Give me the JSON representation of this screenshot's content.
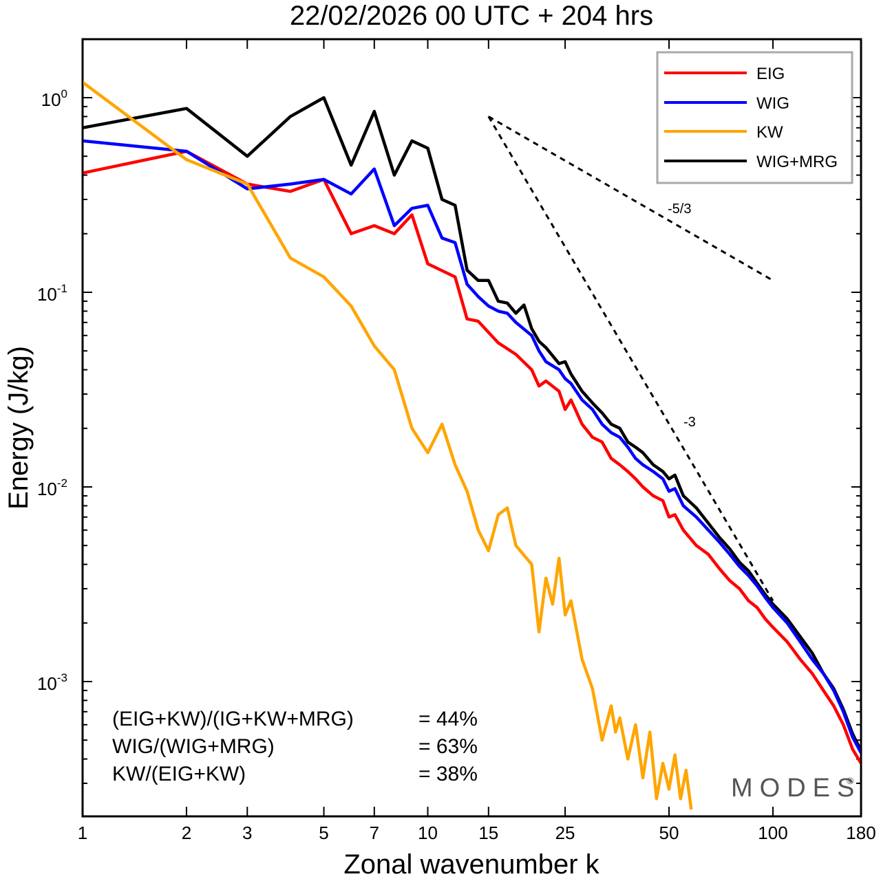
{
  "chart_data": {
    "type": "line",
    "title": "22/02/2026  00 UTC  + 204 hrs",
    "xlabel": "Zonal wavenumber k",
    "ylabel": "Energy (J/kg)",
    "xscale": "log",
    "yscale": "log",
    "xlim": [
      1,
      180
    ],
    "ylim": [
      0.0002,
      2.0
    ],
    "x_ticks": [
      1,
      2,
      3,
      5,
      7,
      10,
      15,
      25,
      50,
      100,
      180
    ],
    "x_tick_labels": [
      "1",
      "2",
      "3",
      "5",
      "7",
      "10",
      "15",
      "25",
      "50",
      "100",
      "180"
    ],
    "y_ticks": [
      {
        "value": 1.0,
        "base": "10",
        "exp": "0"
      },
      {
        "value": 0.1,
        "base": "10",
        "exp": "-1"
      },
      {
        "value": 0.01,
        "base": "10",
        "exp": "-2"
      },
      {
        "value": 0.001,
        "base": "10",
        "exp": "-3"
      }
    ],
    "legend_position": "top-right",
    "series": [
      {
        "name": "EIG",
        "color": "#ff0000",
        "points": [
          [
            1,
            0.41
          ],
          [
            2,
            0.53
          ],
          [
            3,
            0.36
          ],
          [
            4,
            0.33
          ],
          [
            5,
            0.38
          ],
          [
            6,
            0.2
          ],
          [
            7,
            0.22
          ],
          [
            8,
            0.2
          ],
          [
            9,
            0.25
          ],
          [
            10,
            0.14
          ],
          [
            12,
            0.12
          ],
          [
            13,
            0.073
          ],
          [
            14,
            0.071
          ],
          [
            16,
            0.055
          ],
          [
            18,
            0.048
          ],
          [
            20,
            0.04
          ],
          [
            21,
            0.033
          ],
          [
            22,
            0.035
          ],
          [
            24,
            0.031
          ],
          [
            25,
            0.025
          ],
          [
            26,
            0.028
          ],
          [
            28,
            0.021
          ],
          [
            30,
            0.018
          ],
          [
            32,
            0.017
          ],
          [
            34,
            0.014
          ],
          [
            36,
            0.013
          ],
          [
            38,
            0.012
          ],
          [
            40,
            0.011
          ],
          [
            42,
            0.01
          ],
          [
            45,
            0.009
          ],
          [
            48,
            0.0085
          ],
          [
            50,
            0.007
          ],
          [
            52,
            0.0072
          ],
          [
            55,
            0.006
          ],
          [
            60,
            0.005
          ],
          [
            65,
            0.0045
          ],
          [
            70,
            0.0038
          ],
          [
            75,
            0.0033
          ],
          [
            80,
            0.003
          ],
          [
            85,
            0.0026
          ],
          [
            90,
            0.0024
          ],
          [
            95,
            0.0021
          ],
          [
            100,
            0.0019
          ],
          [
            110,
            0.0016
          ],
          [
            120,
            0.0013
          ],
          [
            130,
            0.0011
          ],
          [
            140,
            0.0009
          ],
          [
            150,
            0.00075
          ],
          [
            160,
            0.0006
          ],
          [
            170,
            0.00045
          ],
          [
            180,
            0.00038
          ]
        ]
      },
      {
        "name": "WIG",
        "color": "#0000ff",
        "points": [
          [
            1,
            0.6
          ],
          [
            2,
            0.53
          ],
          [
            3,
            0.34
          ],
          [
            4,
            0.36
          ],
          [
            5,
            0.38
          ],
          [
            6,
            0.32
          ],
          [
            7,
            0.43
          ],
          [
            8,
            0.22
          ],
          [
            9,
            0.27
          ],
          [
            10,
            0.28
          ],
          [
            11,
            0.19
          ],
          [
            12,
            0.18
          ],
          [
            13,
            0.11
          ],
          [
            14,
            0.095
          ],
          [
            15,
            0.085
          ],
          [
            16,
            0.08
          ],
          [
            17,
            0.078
          ],
          [
            18,
            0.07
          ],
          [
            20,
            0.06
          ],
          [
            21,
            0.05
          ],
          [
            22,
            0.044
          ],
          [
            24,
            0.04
          ],
          [
            25,
            0.036
          ],
          [
            26,
            0.034
          ],
          [
            28,
            0.028
          ],
          [
            30,
            0.025
          ],
          [
            32,
            0.021
          ],
          [
            34,
            0.019
          ],
          [
            36,
            0.018
          ],
          [
            38,
            0.016
          ],
          [
            40,
            0.014
          ],
          [
            42,
            0.013
          ],
          [
            45,
            0.012
          ],
          [
            48,
            0.011
          ],
          [
            50,
            0.0095
          ],
          [
            52,
            0.0098
          ],
          [
            55,
            0.008
          ],
          [
            60,
            0.007
          ],
          [
            65,
            0.006
          ],
          [
            70,
            0.0052
          ],
          [
            75,
            0.0045
          ],
          [
            80,
            0.0039
          ],
          [
            85,
            0.0035
          ],
          [
            90,
            0.0031
          ],
          [
            95,
            0.0027
          ],
          [
            100,
            0.0024
          ],
          [
            110,
            0.002
          ],
          [
            120,
            0.0016
          ],
          [
            130,
            0.0013
          ],
          [
            140,
            0.0011
          ],
          [
            150,
            0.0009
          ],
          [
            160,
            0.0007
          ],
          [
            170,
            0.00052
          ],
          [
            180,
            0.00043
          ]
        ]
      },
      {
        "name": "KW",
        "color": "#ffa500",
        "points": [
          [
            1,
            1.2
          ],
          [
            2,
            0.48
          ],
          [
            3,
            0.36
          ],
          [
            4,
            0.15
          ],
          [
            5,
            0.12
          ],
          [
            6,
            0.085
          ],
          [
            7,
            0.053
          ],
          [
            8,
            0.04
          ],
          [
            9,
            0.02
          ],
          [
            10,
            0.015
          ],
          [
            11,
            0.021
          ],
          [
            12,
            0.013
          ],
          [
            13,
            0.0095
          ],
          [
            14,
            0.006
          ],
          [
            15,
            0.0047
          ],
          [
            16,
            0.0072
          ],
          [
            17,
            0.0078
          ],
          [
            18,
            0.005
          ],
          [
            20,
            0.004
          ],
          [
            21,
            0.0018
          ],
          [
            22,
            0.0034
          ],
          [
            23,
            0.0025
          ],
          [
            24,
            0.0043
          ],
          [
            25,
            0.0022
          ],
          [
            26,
            0.0026
          ],
          [
            28,
            0.0013
          ],
          [
            30,
            0.00092
          ],
          [
            32,
            0.0005
          ],
          [
            34,
            0.00075
          ],
          [
            35,
            0.00055
          ],
          [
            36,
            0.00065
          ],
          [
            38,
            0.0004
          ],
          [
            40,
            0.0006
          ],
          [
            42,
            0.00032
          ],
          [
            44,
            0.00055
          ],
          [
            46,
            0.00025
          ],
          [
            48,
            0.00038
          ],
          [
            50,
            0.00028
          ],
          [
            52,
            0.00042
          ],
          [
            54,
            0.00025
          ],
          [
            56,
            0.00035
          ],
          [
            58,
            0.00022
          ]
        ]
      },
      {
        "name": "WIG+MRG",
        "color": "#000000",
        "points": [
          [
            1,
            0.7
          ],
          [
            2,
            0.88
          ],
          [
            3,
            0.5
          ],
          [
            4,
            0.8
          ],
          [
            5,
            1.0
          ],
          [
            6,
            0.45
          ],
          [
            7,
            0.85
          ],
          [
            8,
            0.4
          ],
          [
            9,
            0.6
          ],
          [
            10,
            0.55
          ],
          [
            11,
            0.3
          ],
          [
            12,
            0.28
          ],
          [
            13,
            0.13
          ],
          [
            14,
            0.115
          ],
          [
            15,
            0.115
          ],
          [
            16,
            0.09
          ],
          [
            17,
            0.088
          ],
          [
            18,
            0.078
          ],
          [
            19,
            0.086
          ],
          [
            20,
            0.065
          ],
          [
            21,
            0.056
          ],
          [
            22,
            0.052
          ],
          [
            24,
            0.043
          ],
          [
            25,
            0.044
          ],
          [
            26,
            0.038
          ],
          [
            28,
            0.031
          ],
          [
            30,
            0.027
          ],
          [
            32,
            0.024
          ],
          [
            34,
            0.021
          ],
          [
            36,
            0.02
          ],
          [
            38,
            0.017
          ],
          [
            40,
            0.016
          ],
          [
            42,
            0.015
          ],
          [
            45,
            0.013
          ],
          [
            48,
            0.012
          ],
          [
            50,
            0.011
          ],
          [
            52,
            0.0115
          ],
          [
            55,
            0.009
          ],
          [
            60,
            0.0078
          ],
          [
            65,
            0.0065
          ],
          [
            70,
            0.0055
          ],
          [
            75,
            0.0048
          ],
          [
            80,
            0.0041
          ],
          [
            85,
            0.0037
          ],
          [
            90,
            0.0032
          ],
          [
            95,
            0.0028
          ],
          [
            100,
            0.0025
          ],
          [
            110,
            0.0021
          ],
          [
            120,
            0.0017
          ],
          [
            130,
            0.0014
          ],
          [
            140,
            0.0011
          ],
          [
            150,
            0.00092
          ],
          [
            160,
            0.00072
          ],
          [
            170,
            0.00054
          ],
          [
            180,
            0.00044
          ]
        ]
      }
    ],
    "reference_lines": [
      {
        "name": "-5/3",
        "label": "-5/3",
        "slope": -1.6667,
        "x": [
          15,
          100
        ],
        "y": [
          0.8,
          0.115
        ]
      },
      {
        "name": "-3",
        "label": "-3",
        "slope": -3,
        "x": [
          15,
          100
        ],
        "y": [
          0.8,
          0.0026
        ]
      }
    ],
    "annotations": [
      {
        "label": "(EIG+KW)/(IG+KW+MRG)",
        "value": "= 44%"
      },
      {
        "label": "WIG/(WIG+MRG)",
        "value": "= 63%"
      },
      {
        "label": "KW/(EIG+KW)",
        "value": "= 38%"
      }
    ],
    "watermark": "MODES",
    "watermark_symbol": "©"
  }
}
